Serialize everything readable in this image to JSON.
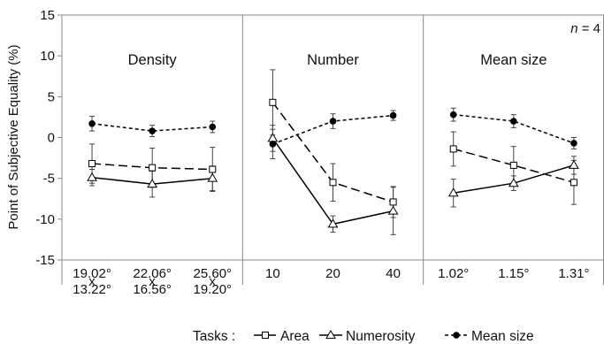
{
  "chart_data": {
    "type": "line",
    "ylabel": "Point of Subjective Equality (%)",
    "ylim": [
      -15,
      15
    ],
    "yticks": [
      15,
      10,
      5,
      0,
      -5,
      -10,
      -15
    ],
    "grid": false,
    "annotation_n": "n = 4",
    "annotation_parts": {
      "var": "n",
      "rest": " = 4"
    },
    "legend_prefix": "Tasks :",
    "legend_position": "bottom",
    "panels": [
      {
        "title": "Density",
        "categories": [
          [
            "19.02°",
            "x",
            "13.22°"
          ],
          [
            "22.06°",
            "x",
            "16.56°"
          ],
          [
            "25.60°",
            "x",
            "19.20°"
          ]
        ]
      },
      {
        "title": "Number",
        "categories": [
          [
            "10"
          ],
          [
            "20"
          ],
          [
            "40"
          ]
        ]
      },
      {
        "title": "Mean size",
        "categories": [
          [
            "1.02°"
          ],
          [
            "1.15°"
          ],
          [
            "1.31°"
          ]
        ]
      }
    ],
    "series": [
      {
        "name": "Area",
        "marker": "square",
        "dash": "long-dash",
        "values": [
          [
            -3.2,
            -3.7,
            -3.9
          ],
          [
            4.3,
            -5.5,
            -7.9
          ],
          [
            -1.4,
            -3.4,
            -5.5
          ]
        ],
        "errors": [
          [
            2.4,
            2.4,
            2.7
          ],
          [
            4.0,
            2.3,
            1.9
          ],
          [
            2.1,
            2.3,
            2.7
          ]
        ]
      },
      {
        "name": "Numerosity",
        "marker": "triangle",
        "dash": "solid",
        "values": [
          [
            -4.9,
            -5.7,
            -5.0
          ],
          [
            -0.1,
            -10.6,
            -9.0
          ],
          [
            -6.8,
            -5.6,
            -3.4
          ]
        ],
        "errors": [
          [
            1.0,
            1.6,
            1.5
          ],
          [
            1.6,
            1.0,
            2.9
          ],
          [
            1.7,
            0.9,
            1.1
          ]
        ]
      },
      {
        "name": "Mean size",
        "marker": "circle",
        "dash": "short-dash",
        "values": [
          [
            1.7,
            0.8,
            1.3
          ],
          [
            -0.8,
            2.0,
            2.7
          ],
          [
            2.8,
            2.0,
            -0.7
          ]
        ],
        "errors": [
          [
            0.9,
            0.7,
            0.7
          ],
          [
            1.8,
            0.9,
            0.6
          ],
          [
            0.8,
            0.8,
            0.7
          ]
        ]
      }
    ]
  }
}
